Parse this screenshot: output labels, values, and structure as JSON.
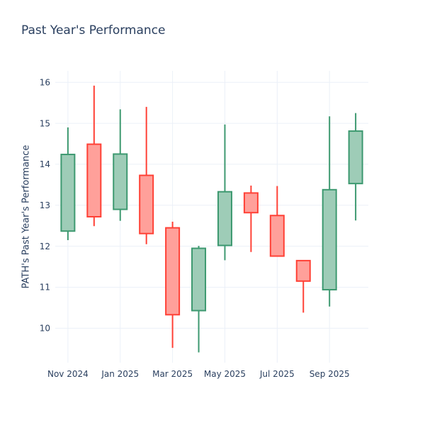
{
  "header": {
    "title": "Past Year's Performance"
  },
  "colors": {
    "background": "#FFFFFF",
    "font": "#2a3f5f",
    "grid": "#EBF0F8",
    "increasing_line": "#3D9970",
    "increasing_fill": "#9ECCB7",
    "decreasing_line": "#FF4136",
    "decreasing_fill": "#FFA09A"
  },
  "chart_data": {
    "type": "candlestick",
    "title": "Past Year's Performance",
    "xlabel": "",
    "ylabel": "PATH's Past Year's Performance",
    "grid": true,
    "legend": false,
    "y_axis_ticks": [
      10,
      11,
      12,
      13,
      14,
      15,
      16
    ],
    "ylim": [
      9.16,
      16.28
    ],
    "categories": [
      "Nov 2024",
      "Dec 2024",
      "Jan 2025",
      "Feb 2025",
      "Mar 2025",
      "Apr 2025",
      "May 2025",
      "Jun 2025",
      "Jul 2025",
      "Aug 2025",
      "Sep 2025",
      "Oct 2025"
    ],
    "x_axis_tick_indices": [
      0,
      2,
      4,
      6,
      8,
      10
    ],
    "x_axis_tick_labels": [
      "Nov 2024",
      "Jan 2025",
      "Mar 2025",
      "May 2025",
      "Jul 2025",
      "Sep 2025"
    ],
    "series": [
      {
        "x": "Nov 2024",
        "open": 12.37,
        "high": 14.9,
        "low": 12.15,
        "close": 14.24,
        "direction": "increasing"
      },
      {
        "x": "Dec 2024",
        "open": 14.49,
        "high": 15.92,
        "low": 12.49,
        "close": 12.72,
        "direction": "decreasing"
      },
      {
        "x": "Jan 2025",
        "open": 12.9,
        "high": 15.34,
        "low": 12.62,
        "close": 14.25,
        "direction": "increasing"
      },
      {
        "x": "Feb 2025",
        "open": 13.73,
        "high": 15.4,
        "low": 12.05,
        "close": 12.31,
        "direction": "decreasing"
      },
      {
        "x": "Mar 2025",
        "open": 12.45,
        "high": 12.6,
        "low": 9.52,
        "close": 10.33,
        "direction": "decreasing"
      },
      {
        "x": "Apr 2025",
        "open": 10.43,
        "high": 12.01,
        "low": 9.41,
        "close": 11.95,
        "direction": "increasing"
      },
      {
        "x": "May 2025",
        "open": 12.02,
        "high": 14.97,
        "low": 11.66,
        "close": 13.33,
        "direction": "increasing"
      },
      {
        "x": "Jun 2025",
        "open": 13.3,
        "high": 13.48,
        "low": 11.86,
        "close": 12.82,
        "direction": "decreasing"
      },
      {
        "x": "Jul 2025",
        "open": 12.75,
        "high": 13.47,
        "low": 11.76,
        "close": 11.76,
        "direction": "decreasing"
      },
      {
        "x": "Aug 2025",
        "open": 11.65,
        "high": 11.65,
        "low": 10.38,
        "close": 11.15,
        "direction": "decreasing"
      },
      {
        "x": "Sep 2025",
        "open": 10.94,
        "high": 15.17,
        "low": 10.53,
        "close": 13.38,
        "direction": "increasing"
      },
      {
        "x": "Oct 2025",
        "open": 13.53,
        "high": 15.25,
        "low": 12.63,
        "close": 14.81,
        "direction": "increasing"
      }
    ]
  }
}
